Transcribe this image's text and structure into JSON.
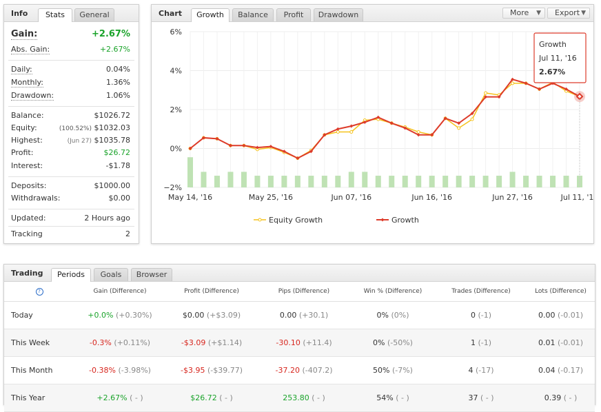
{
  "info": {
    "title": "Info",
    "tabs": [
      "Stats",
      "General"
    ],
    "rows": [
      {
        "label": "Gain:",
        "value": "+2.67%",
        "pre": ""
      },
      {
        "label": "Abs. Gain:",
        "value": "+2.67%",
        "pre": ""
      },
      {
        "label": "Daily:",
        "value": "0.04%",
        "pre": ""
      },
      {
        "label": "Monthly:",
        "value": "1.36%",
        "pre": ""
      },
      {
        "label": "Drawdown:",
        "value": "1.06%",
        "pre": ""
      },
      {
        "label": "Balance:",
        "value": "$1026.72",
        "pre": ""
      },
      {
        "label": "Equity:",
        "value": "$1032.03",
        "pre": "(100.52%)"
      },
      {
        "label": "Highest:",
        "value": "$1035.78",
        "pre": "(Jun 27)"
      },
      {
        "label": "Profit:",
        "value": "$26.72",
        "pre": ""
      },
      {
        "label": "Interest:",
        "value": "-$1.78",
        "pre": ""
      },
      {
        "label": "Deposits:",
        "value": "$1000.00",
        "pre": ""
      },
      {
        "label": "Withdrawals:",
        "value": "$0.00",
        "pre": ""
      },
      {
        "label": "Updated:",
        "value": "2 Hours ago",
        "pre": ""
      },
      {
        "label": "Tracking",
        "value": "2",
        "pre": ""
      }
    ]
  },
  "chart_panel": {
    "title": "Chart",
    "tabs": [
      "Growth",
      "Balance",
      "Profit",
      "Drawdown"
    ],
    "more_label": "More",
    "export_label": "Export",
    "tooltip": {
      "title": "Growth",
      "date": "Jul 11, '16",
      "value": "2.67%"
    }
  },
  "chart_data": {
    "type": "line",
    "y_ticks": [
      "6%",
      "4%",
      "2%",
      "0%",
      "−2%"
    ],
    "ylim": [
      -2,
      6
    ],
    "x_ticks": [
      "May 14, '16",
      "May 25, '16",
      "Jun 07, '16",
      "Jun 16, '16",
      "Jun 27, '16",
      "Jul 11, '16"
    ],
    "series": [
      {
        "name": "Equity Growth",
        "color": "#f5c21b",
        "values": [
          0.0,
          0.55,
          0.5,
          0.15,
          0.15,
          -0.05,
          0.05,
          -0.2,
          -0.5,
          -0.1,
          0.7,
          0.85,
          0.85,
          1.45,
          1.5,
          1.3,
          1.1,
          0.85,
          0.7,
          1.55,
          1.05,
          1.5,
          2.85,
          2.75,
          3.35,
          3.35,
          3.05,
          3.4,
          2.95,
          2.67
        ]
      },
      {
        "name": "Growth",
        "color": "#dd3b2a",
        "values": [
          0.0,
          0.55,
          0.5,
          0.15,
          0.15,
          0.05,
          0.1,
          -0.15,
          -0.5,
          -0.15,
          0.7,
          1.0,
          1.15,
          1.35,
          1.6,
          1.3,
          1.05,
          0.7,
          0.7,
          1.55,
          1.3,
          1.8,
          2.65,
          2.65,
          3.55,
          3.35,
          3.05,
          3.35,
          3.05,
          2.67
        ]
      }
    ],
    "bars": {
      "color": "#bfe2b4",
      "values": [
        -0.45,
        -1.2,
        -1.4,
        -1.2,
        -1.2,
        -1.4,
        -1.4,
        -1.4,
        -1.4,
        -1.4,
        -1.4,
        -1.4,
        -1.2,
        -1.2,
        -1.4,
        -1.4,
        -1.4,
        -1.4,
        -1.4,
        -1.4,
        -1.4,
        -1.4,
        -1.4,
        -1.4,
        -1.2,
        -1.4,
        -1.4,
        -1.4,
        -1.4,
        -1.4
      ]
    },
    "legend_position": "bottom"
  },
  "trading": {
    "title": "Trading",
    "tabs": [
      "Periods",
      "Goals",
      "Browser"
    ],
    "help_glyph": "?",
    "columns": [
      "Gain (Difference)",
      "Profit (Difference)",
      "Pips (Difference)",
      "Win % (Difference)",
      "Trades (Difference)",
      "Lots (Difference)"
    ],
    "rows": [
      {
        "period": "Today",
        "cells": [
          {
            "v": "+0.0%",
            "d": "(+0.30%)",
            "c": "#1aa32a"
          },
          {
            "v": "$0.00",
            "d": "(+$3.09)",
            "c": "#333333"
          },
          {
            "v": "0.00",
            "d": "(+30.1)",
            "c": "#333333"
          },
          {
            "v": "0%",
            "d": "(0%)",
            "c": "#333333"
          },
          {
            "v": "0",
            "d": "(-1)",
            "c": "#333333"
          },
          {
            "v": "0.00",
            "d": "(-0.01)",
            "c": "#333333"
          }
        ]
      },
      {
        "period": "This Week",
        "cells": [
          {
            "v": "-0.3%",
            "d": "(+0.11%)",
            "c": "#d7261e"
          },
          {
            "v": "-$3.09",
            "d": "(+$1.14)",
            "c": "#d7261e"
          },
          {
            "v": "-30.10",
            "d": "(+11.4)",
            "c": "#d7261e"
          },
          {
            "v": "0%",
            "d": "(-50%)",
            "c": "#333333"
          },
          {
            "v": "1",
            "d": "(-1)",
            "c": "#333333"
          },
          {
            "v": "0.01",
            "d": "(-0.01)",
            "c": "#333333"
          }
        ]
      },
      {
        "period": "This Month",
        "cells": [
          {
            "v": "-0.38%",
            "d": "(-3.98%)",
            "c": "#d7261e"
          },
          {
            "v": "-$3.95",
            "d": "(-$39.77)",
            "c": "#d7261e"
          },
          {
            "v": "-37.20",
            "d": "(-407.2)",
            "c": "#d7261e"
          },
          {
            "v": "50%",
            "d": "(-7%)",
            "c": "#333333"
          },
          {
            "v": "4",
            "d": "(-17)",
            "c": "#333333"
          },
          {
            "v": "0.04",
            "d": "(-0.17)",
            "c": "#333333"
          }
        ]
      },
      {
        "period": "This Year",
        "cells": [
          {
            "v": "+2.67%",
            "d": "( - )",
            "c": "#1aa32a"
          },
          {
            "v": "$26.72",
            "d": "( - )",
            "c": "#1aa32a"
          },
          {
            "v": "253.80",
            "d": "( - )",
            "c": "#1aa32a"
          },
          {
            "v": "54%",
            "d": "( - )",
            "c": "#333333"
          },
          {
            "v": "37",
            "d": "( - )",
            "c": "#333333"
          },
          {
            "v": "0.39",
            "d": "( - )",
            "c": "#333333"
          }
        ]
      }
    ]
  }
}
